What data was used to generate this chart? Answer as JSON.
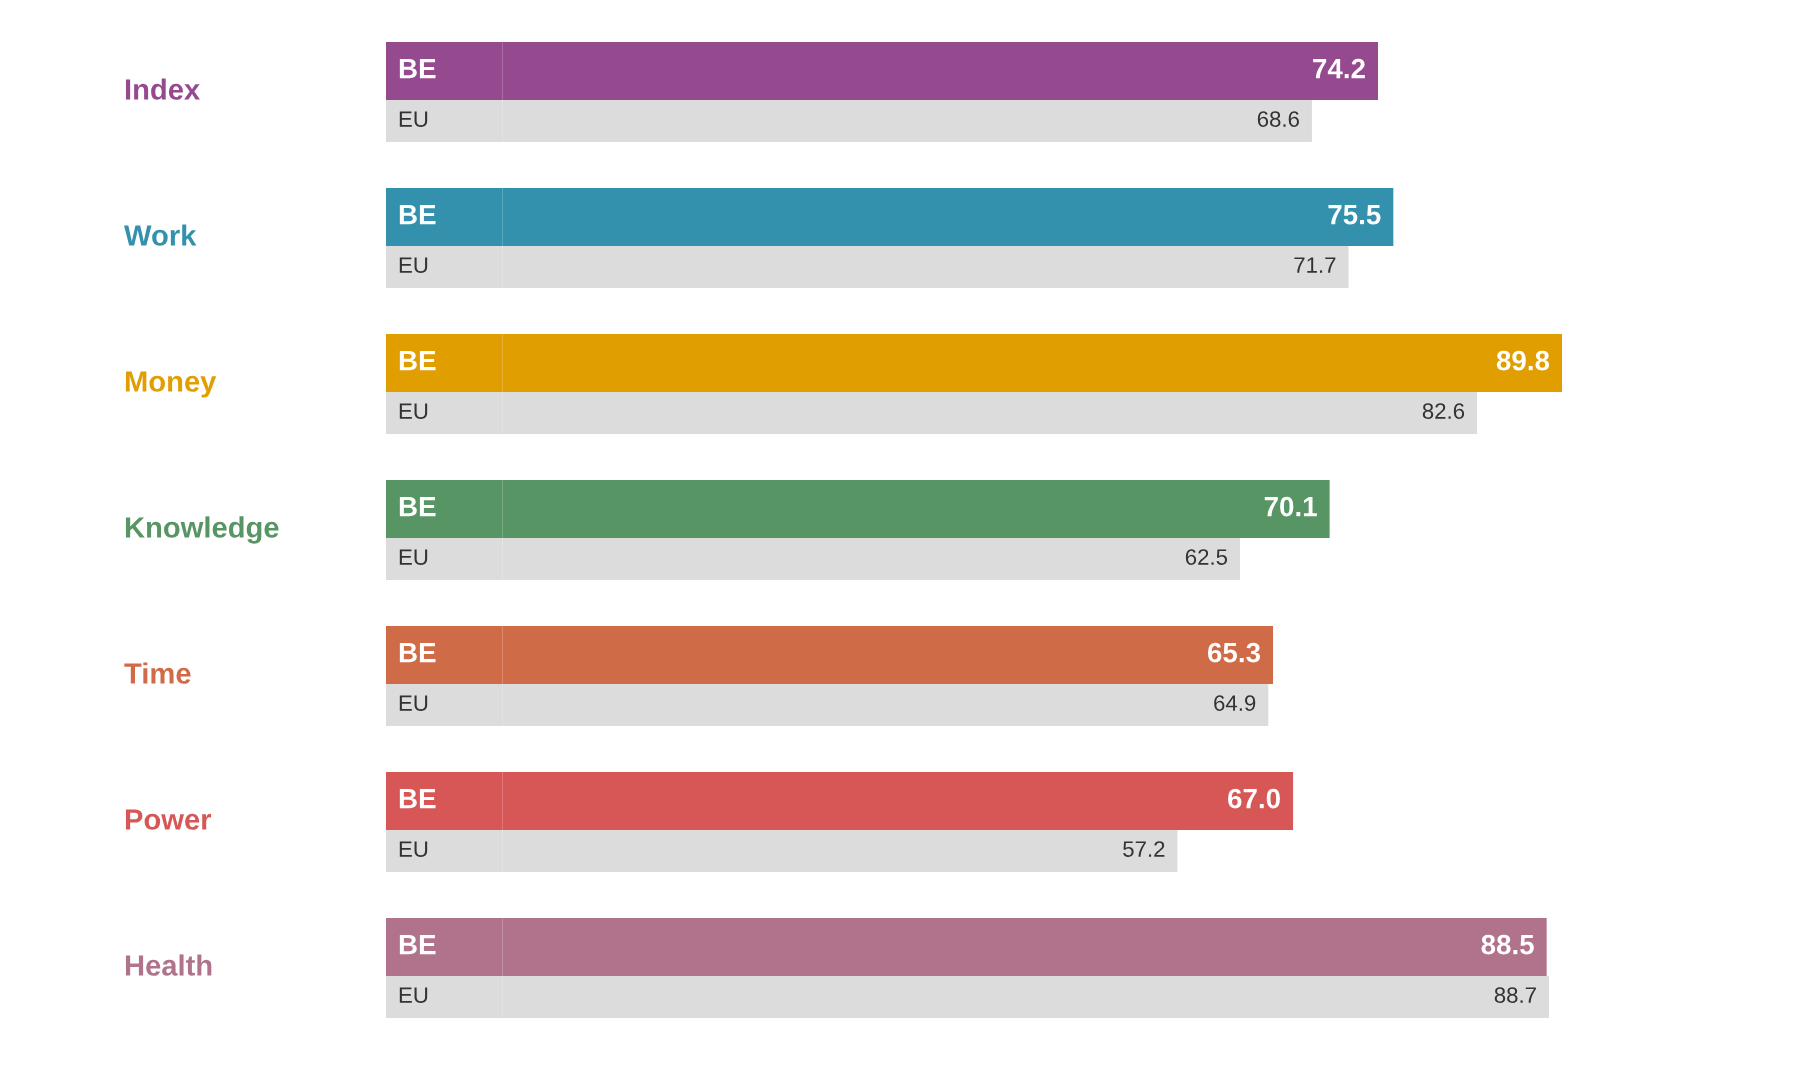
{
  "chart_data": {
    "type": "bar",
    "orientation": "horizontal",
    "categories": [
      "Index",
      "Work",
      "Money",
      "Knowledge",
      "Time",
      "Power",
      "Health"
    ],
    "series": [
      {
        "name": "BE",
        "colors": [
          "#954a90",
          "#3391ad",
          "#e09e00",
          "#579565",
          "#d06b48",
          "#d75757",
          "#b0738b"
        ],
        "values": [
          74.2,
          75.5,
          89.8,
          70.1,
          65.3,
          67.0,
          88.5
        ],
        "value_labels": [
          "74.2",
          "75.5",
          "89.8",
          "70.1",
          "65.3",
          "67.0",
          "88.5"
        ]
      },
      {
        "name": "EU",
        "color": "#dcdcdc",
        "values": [
          68.6,
          71.7,
          82.6,
          62.5,
          64.9,
          57.2,
          88.7
        ],
        "value_labels": [
          "68.6",
          "71.7",
          "82.6",
          "62.5",
          "64.9",
          "57.2",
          "88.7"
        ]
      }
    ],
    "legend": false
  }
}
